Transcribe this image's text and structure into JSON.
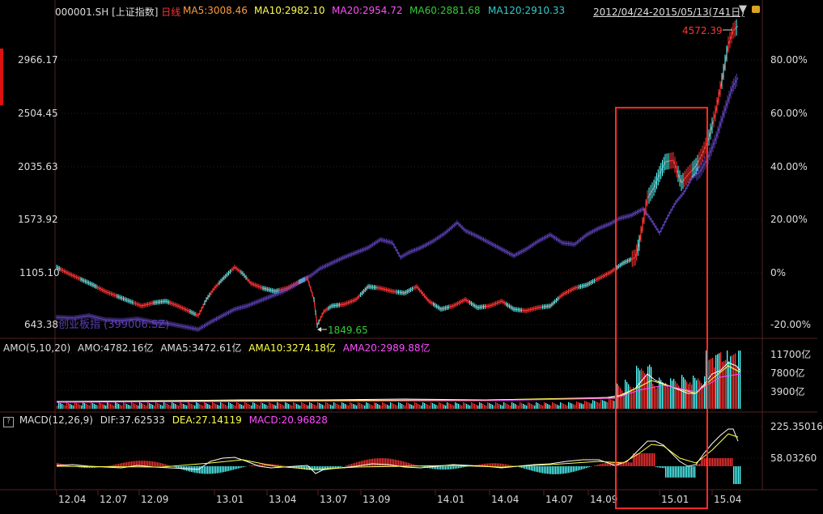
{
  "header": {
    "code": "000001.SH",
    "name": "[上证指数]",
    "period": "日线",
    "ma5": "MA5:3008.46",
    "ma10": "MA10:2982.10",
    "ma20": "MA20:2954.72",
    "ma60": "MA60:2881.68",
    "ma120": "MA120:2910.33",
    "range": "2012/04/24-2015/05/13(741日)"
  },
  "colors": {
    "background": "#000000",
    "up": "#ff3333",
    "down": "#54ffff",
    "overlay": "#5a3fb0",
    "ma5": "#ff9c3c",
    "ma10": "#ffff4d",
    "ma20": "#ff4dff",
    "ma60": "#33cc33",
    "ma120": "#33cccc",
    "highlight": "#ff2a2a"
  },
  "price_axis_left": [
    "2966.17",
    "2504.45",
    "2035.63",
    "1573.92",
    "1105.10",
    "643.38"
  ],
  "percent_axis_right": [
    "80.00%",
    "60.00%",
    "40.00%",
    "20.00%",
    "0%",
    "-20.00%"
  ],
  "overlay_label": "创业板指 (399006.SZ)",
  "annotations": {
    "high": "4572.39",
    "low": "1849.65"
  },
  "amo": {
    "title": "AMO(5,10,20)",
    "amo": "AMO:4782.16亿",
    "ama5": "AMA5:3472.61亿",
    "ama10": "AMA10:3274.18亿",
    "ama20": "AMA20:2989.88亿",
    "axis": [
      "11700亿",
      "7800亿",
      "3900亿"
    ]
  },
  "macd": {
    "title": "MACD(12,26,9)",
    "dif": "DIF:37.62533",
    "dea": "DEA:27.14119",
    "macd": "MACD:20.96828",
    "axis": [
      "225.35016",
      "58.03260"
    ]
  },
  "x_axis": [
    "12.04",
    "12.07",
    "12.09",
    "13.01",
    "13.04",
    "13.07",
    "13.09",
    "14.01",
    "14.04",
    "14.07",
    "14.09",
    "15.01",
    "15.04"
  ]
}
